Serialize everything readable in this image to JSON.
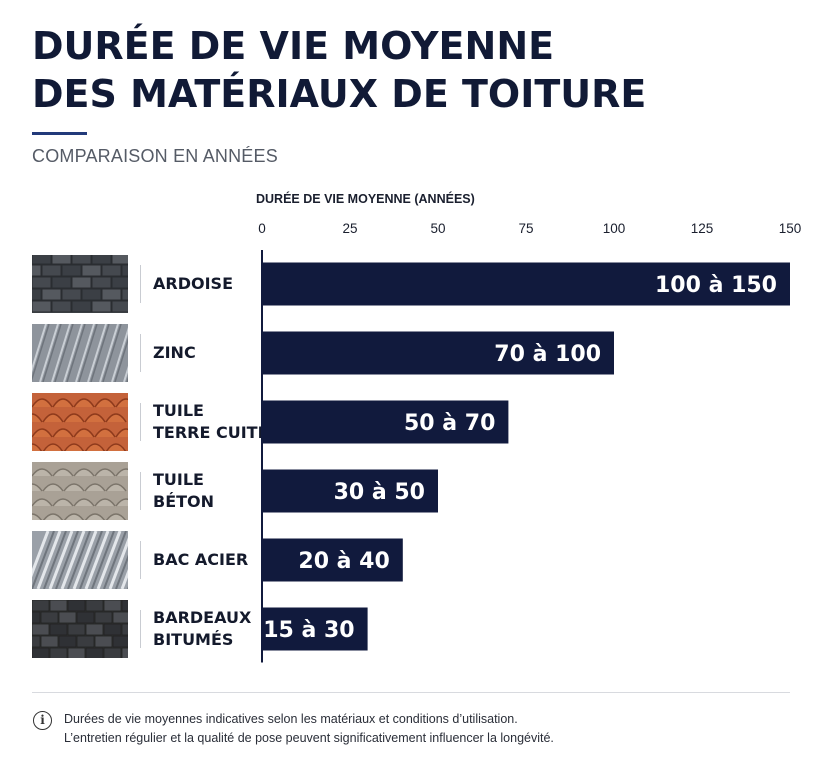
{
  "title": {
    "line1": "DURÉE DE VIE MOYENNE",
    "line2": "DES MATÉRIAUX DE TOITURE"
  },
  "subtitle": "COMPARAISON EN ANNÉES",
  "chart_data": {
    "type": "bar",
    "orientation": "horizontal",
    "xlabel": "DURÉE DE VIE MOYENNE (ANNÉES)",
    "xlim": [
      0,
      150
    ],
    "ticks": [
      0,
      25,
      50,
      75,
      100,
      125,
      150
    ],
    "bar_color": "#111a3d",
    "categories": [
      "ARDOISE",
      "ZINC",
      "TUILE\nTERRE CUITE",
      "TUILE\nBÉTON",
      "BAC ACIER",
      "BARDEAUX\nBITUMÉS"
    ],
    "ranges": [
      [
        100,
        150
      ],
      [
        70,
        100
      ],
      [
        50,
        70
      ],
      [
        30,
        50
      ],
      [
        20,
        40
      ],
      [
        15,
        30
      ]
    ],
    "labels": [
      "100 à 150",
      "70 à 100",
      "50 à 70",
      "30 à 50",
      "20 à 40",
      "15 à 30"
    ]
  },
  "materials": [
    {
      "name": "ardoise",
      "color": "#4a4e54"
    },
    {
      "name": "zinc",
      "color": "#8e949c"
    },
    {
      "name": "tuile-terre-cuite",
      "color": "#c4623a"
    },
    {
      "name": "tuile-beton",
      "color": "#a9a196"
    },
    {
      "name": "bac-acier",
      "color": "#9aa0a8"
    },
    {
      "name": "bardeaux-bitumes",
      "color": "#3e4044"
    }
  ],
  "footnote": {
    "icon": "info-icon",
    "line1": "Durées de vie moyennes indicatives selon les matériaux et conditions d’utilisation.",
    "line2": "L’entretien régulier et la qualité de pose peuvent significativement influencer la longévité."
  }
}
